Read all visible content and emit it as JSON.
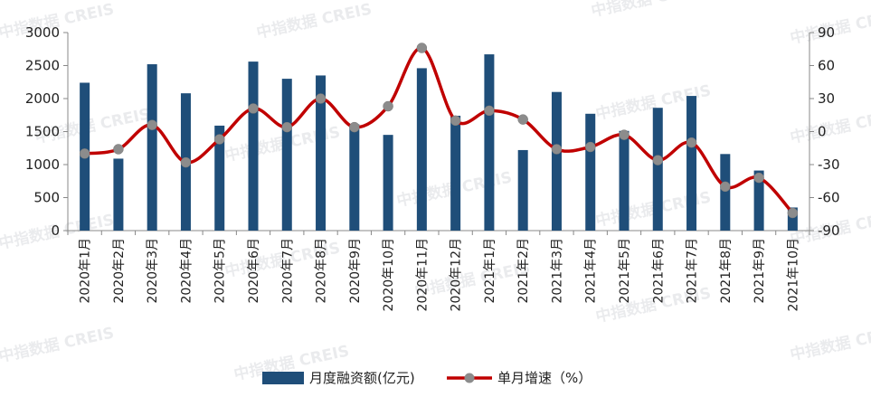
{
  "watermark": "中指数据 CREIS",
  "chart_data": {
    "type": "bar",
    "categories": [
      "2020年1月",
      "2020年2月",
      "2020年3月",
      "2020年4月",
      "2020年5月",
      "2020年6月",
      "2020年7月",
      "2020年8月",
      "2020年9月",
      "2020年10月",
      "2020年11月",
      "2020年12月",
      "2021年1月",
      "2021年2月",
      "2021年3月",
      "2021年4月",
      "2021年5月",
      "2021年6月",
      "2021年7月",
      "2021年8月",
      "2021年9月",
      "2021年10月"
    ],
    "series": [
      {
        "name": "月度融资额(亿元)",
        "type": "bar",
        "axis": "left",
        "color": "#1f4e79",
        "values": [
          2240,
          1090,
          2520,
          2080,
          1590,
          2560,
          2300,
          2350,
          1610,
          1450,
          2460,
          1740,
          2670,
          1220,
          2100,
          1770,
          1510,
          1860,
          2040,
          1160,
          910,
          350
        ]
      },
      {
        "name": "单月增速（%）",
        "type": "line",
        "axis": "right",
        "color": "#c00000",
        "marker_color": "#8c8c8c",
        "values": [
          -20,
          -16,
          6,
          -28,
          -7,
          21,
          4,
          30,
          4,
          23,
          76,
          10,
          19,
          11,
          -16,
          -14,
          -3,
          -26,
          -10,
          -50,
          -42,
          -74
        ]
      }
    ],
    "y_left": {
      "min": 0,
      "max": 3000,
      "ticks": [
        0,
        500,
        1000,
        1500,
        2000,
        2500,
        3000
      ]
    },
    "y_right": {
      "min": -90,
      "max": 90,
      "ticks": [
        -90,
        -60,
        -30,
        0,
        30,
        60,
        90
      ]
    },
    "legend": "bottom",
    "grid": false
  }
}
